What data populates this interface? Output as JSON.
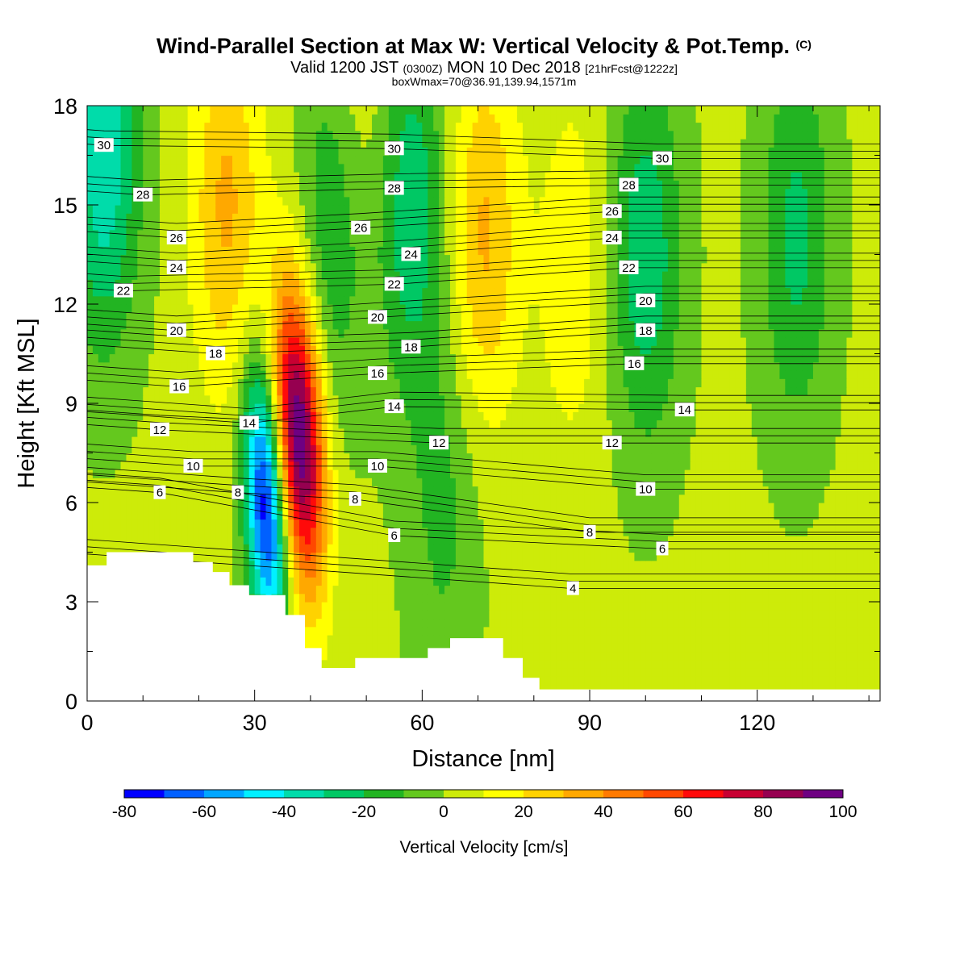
{
  "header": {
    "title": "Wind-Parallel Section at Max W: Vertical Velocity & Pot.Temp.",
    "title_mark": "(C)",
    "valid_prefix": "Valid 1200 JST",
    "valid_z": "(0300Z)",
    "valid_date": "MON 10 Dec 2018",
    "valid_fcst": "[21hrFcst@1222z]",
    "box_info": "boxWmax=70@36.91,139.94,1571m"
  },
  "chart_data": {
    "type": "heatmap",
    "title": "Wind-Parallel Section at Max W: Vertical Velocity & Pot.Temp.",
    "xlabel": "Distance [nm]",
    "ylabel": "Height [Kft MSL]",
    "xlim": [
      0,
      142
    ],
    "ylim": [
      0,
      18
    ],
    "x_ticks": [
      0,
      30,
      60,
      90,
      120
    ],
    "y_ticks": [
      0,
      3,
      6,
      9,
      12,
      15,
      18
    ],
    "colorbar": {
      "title": "Vertical Velocity [cm/s]",
      "min": -80,
      "max": 100,
      "step": 10,
      "tick_labels": [
        "-80",
        "-60",
        "-40",
        "-20",
        "0",
        "20",
        "40",
        "60",
        "80",
        "100"
      ],
      "colors": [
        "#0000ff",
        "#0060ff",
        "#00a6ff",
        "#00f0ff",
        "#00dcaa",
        "#00c864",
        "#22b422",
        "#64c81e",
        "#cdeb09",
        "#ffff00",
        "#ffd200",
        "#ffa800",
        "#ff7a00",
        "#ff4800",
        "#ff0a0a",
        "#c80032",
        "#960050",
        "#6e0082"
      ]
    },
    "vertical_velocity_features": [
      {
        "kind": "updraft",
        "x": 38,
        "y": 8.0,
        "peak": 100
      },
      {
        "kind": "updraft",
        "x": 25,
        "y": 15.0,
        "peak": 30
      },
      {
        "kind": "updraft",
        "x": 48,
        "y": 17.0,
        "peak": 20
      },
      {
        "kind": "updraft",
        "x": 71,
        "y": 14.0,
        "peak": 30
      },
      {
        "kind": "updraft",
        "x": 87,
        "y": 13.0,
        "peak": 15
      },
      {
        "kind": "downdraft",
        "x": 32,
        "y": 6.0,
        "peak": -80
      },
      {
        "kind": "downdraft",
        "x": 3,
        "y": 16.5,
        "peak": -40
      },
      {
        "kind": "downdraft",
        "x": 45,
        "y": 15.0,
        "peak": -30
      },
      {
        "kind": "downdraft",
        "x": 58,
        "y": 15.0,
        "peak": -30
      },
      {
        "kind": "downdraft",
        "x": 100,
        "y": 13.5,
        "peak": -30
      },
      {
        "kind": "downdraft",
        "x": 127,
        "y": 14.0,
        "peak": -25
      },
      {
        "kind": "downdraft",
        "x": 64,
        "y": 6.0,
        "peak": -15
      }
    ],
    "potential_temperature_labels": [
      {
        "text": "30",
        "x": 3,
        "y": 16.8
      },
      {
        "text": "28",
        "x": 10,
        "y": 15.3
      },
      {
        "text": "26",
        "x": 16,
        "y": 14.0
      },
      {
        "text": "24",
        "x": 16,
        "y": 13.1
      },
      {
        "text": "22",
        "x": 6.5,
        "y": 12.4
      },
      {
        "text": "20",
        "x": 16,
        "y": 11.2
      },
      {
        "text": "18",
        "x": 23,
        "y": 10.5
      },
      {
        "text": "16",
        "x": 16.5,
        "y": 9.5
      },
      {
        "text": "14",
        "x": 29,
        "y": 8.4
      },
      {
        "text": "12",
        "x": 13,
        "y": 8.2
      },
      {
        "text": "10",
        "x": 19,
        "y": 7.1
      },
      {
        "text": "8",
        "x": 27,
        "y": 6.3
      },
      {
        "text": "6",
        "x": 13,
        "y": 6.3
      },
      {
        "text": "30",
        "x": 55,
        "y": 16.7
      },
      {
        "text": "28",
        "x": 55,
        "y": 15.5
      },
      {
        "text": "26",
        "x": 49,
        "y": 14.3
      },
      {
        "text": "24",
        "x": 58,
        "y": 13.5
      },
      {
        "text": "22",
        "x": 55,
        "y": 12.6
      },
      {
        "text": "20",
        "x": 52,
        "y": 11.6
      },
      {
        "text": "18",
        "x": 58,
        "y": 10.7
      },
      {
        "text": "16",
        "x": 52,
        "y": 9.9
      },
      {
        "text": "14",
        "x": 55,
        "y": 8.9
      },
      {
        "text": "12",
        "x": 63,
        "y": 7.8
      },
      {
        "text": "10",
        "x": 52,
        "y": 7.1
      },
      {
        "text": "8",
        "x": 48,
        "y": 6.1
      },
      {
        "text": "6",
        "x": 55,
        "y": 5.0
      },
      {
        "text": "30",
        "x": 103,
        "y": 16.4
      },
      {
        "text": "28",
        "x": 97,
        "y": 15.6
      },
      {
        "text": "26",
        "x": 94,
        "y": 14.8
      },
      {
        "text": "24",
        "x": 94,
        "y": 14.0
      },
      {
        "text": "22",
        "x": 97,
        "y": 13.1
      },
      {
        "text": "20",
        "x": 100,
        "y": 12.1
      },
      {
        "text": "18",
        "x": 100,
        "y": 11.2
      },
      {
        "text": "16",
        "x": 98,
        "y": 10.2
      },
      {
        "text": "14",
        "x": 107,
        "y": 8.8
      },
      {
        "text": "12",
        "x": 94,
        "y": 7.8
      },
      {
        "text": "10",
        "x": 100,
        "y": 6.4
      },
      {
        "text": "8",
        "x": 90,
        "y": 5.1
      },
      {
        "text": "6",
        "x": 103,
        "y": 4.6
      },
      {
        "text": "4",
        "x": 87,
        "y": 3.4
      }
    ],
    "terrain": [
      [
        0,
        4.1
      ],
      [
        3.5,
        4.1
      ],
      [
        3.5,
        4.5
      ],
      [
        19,
        4.5
      ],
      [
        19,
        4.2
      ],
      [
        22.5,
        4.2
      ],
      [
        22.5,
        3.9
      ],
      [
        25.5,
        3.9
      ],
      [
        25.5,
        3.5
      ],
      [
        29,
        3.5
      ],
      [
        29,
        3.2
      ],
      [
        35.5,
        3.2
      ],
      [
        35.5,
        2.6
      ],
      [
        39,
        2.6
      ],
      [
        39,
        1.6
      ],
      [
        42,
        1.6
      ],
      [
        42,
        1.0
      ],
      [
        48,
        1.0
      ],
      [
        48,
        1.3
      ],
      [
        61,
        1.3
      ],
      [
        61,
        1.6
      ],
      [
        65,
        1.6
      ],
      [
        65,
        1.9
      ],
      [
        74.5,
        1.9
      ],
      [
        74.5,
        1.3
      ],
      [
        78,
        1.3
      ],
      [
        78,
        0.7
      ],
      [
        81,
        0.7
      ],
      [
        81,
        0.35
      ],
      [
        142,
        0.35
      ]
    ]
  }
}
